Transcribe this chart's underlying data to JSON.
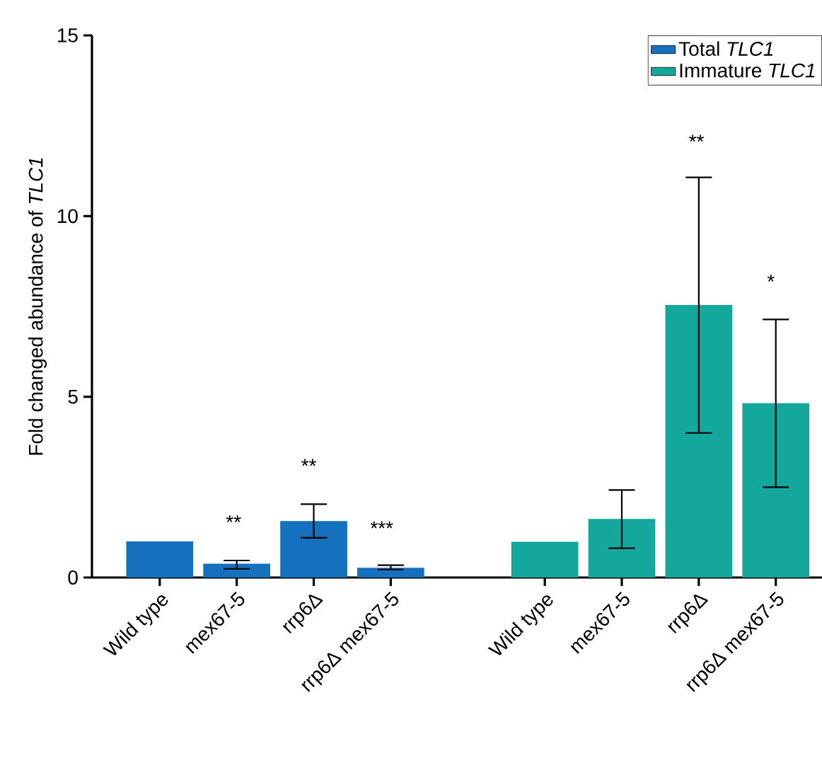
{
  "chart_data": {
    "type": "bar",
    "ylabel": "Fold changed abundance of *TLC1*",
    "categories": [
      "Wild type",
      "mex67-5",
      "rrp6Δ",
      "rrp6Δ mex67-5",
      null,
      "Wild type",
      "mex67-5",
      "rrp6Δ",
      "rrp6Δ mex67-5"
    ],
    "series": [
      {
        "name": "Total *TLC1*",
        "color": "#1570be",
        "values": [
          1.0,
          0.38,
          1.56,
          0.27,
          null,
          null,
          null,
          null,
          null
        ],
        "errors": [
          null,
          [
            0.24,
            0.47
          ],
          [
            1.1,
            2.03
          ],
          [
            0.22,
            0.34
          ],
          null,
          null,
          null,
          null,
          null
        ]
      },
      {
        "name": "Immature *TLC1*",
        "color": "#14a89c",
        "values": [
          null,
          null,
          null,
          null,
          null,
          0.99,
          1.62,
          7.54,
          4.82
        ],
        "errors": [
          null,
          null,
          null,
          null,
          null,
          null,
          [
            0.81,
            2.42
          ],
          [
            4.0,
            11.07
          ],
          [
            2.5,
            7.14
          ]
        ]
      }
    ],
    "ylim": [
      0,
      15
    ],
    "yticks": [
      0,
      5,
      10,
      15
    ],
    "legend": "top right",
    "grid": false,
    "annotations": [
      "**",
      "**",
      "***",
      "**",
      "*"
    ]
  }
}
